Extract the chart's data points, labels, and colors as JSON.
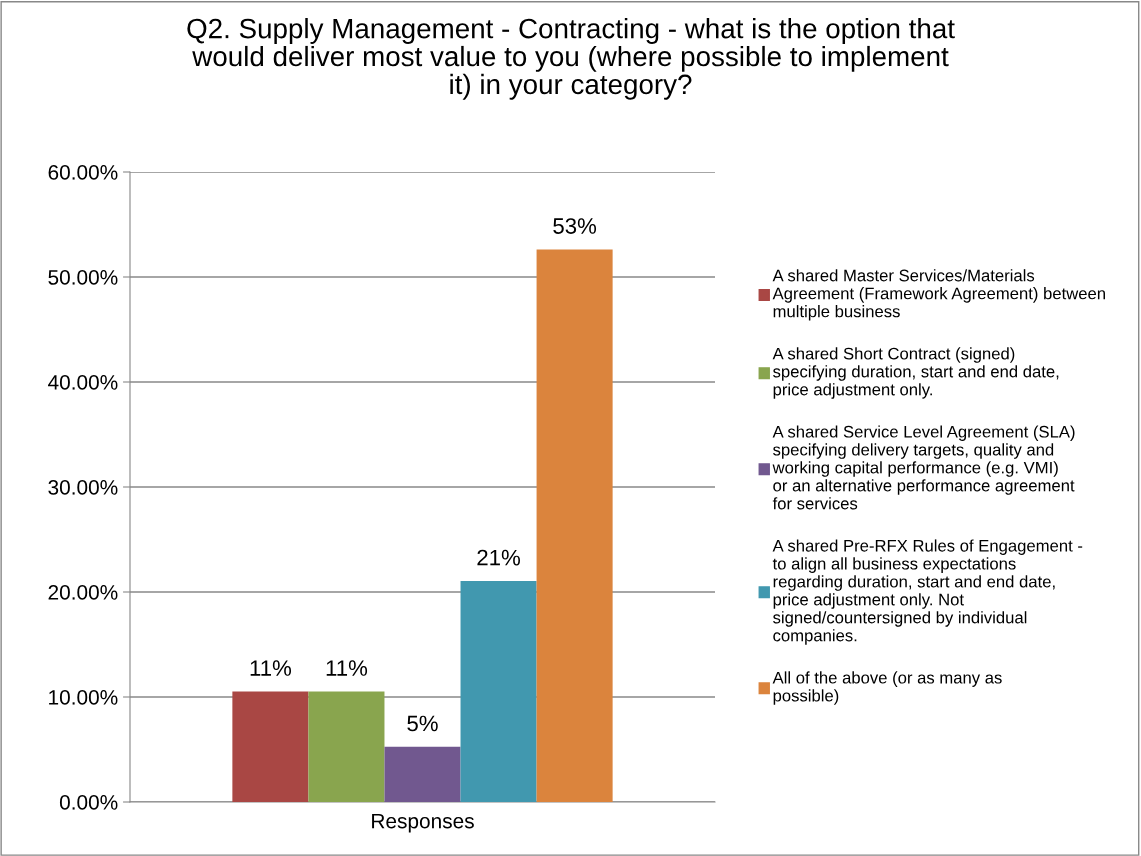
{
  "chart_data": {
    "type": "bar",
    "title": "Q2. Supply Management - Contracting - what is the option that would deliver most value to you (where possible to implement it) in your category?",
    "categories": [
      "Responses"
    ],
    "series": [
      {
        "name": "A shared Master Services/Materials Agreement (Framework Agreement) between multiple business",
        "color": "#a94744",
        "values": [
          10.53
        ],
        "value_labels": [
          "11%"
        ]
      },
      {
        "name": "A shared Short Contract (signed) specifying duration, start and end date, price adjustment only.",
        "color": "#89a54e",
        "values": [
          10.53
        ],
        "value_labels": [
          "11%"
        ]
      },
      {
        "name": "A shared Service Level Agreement (SLA) specifying delivery targets, quality and working capital performance (e.g. VMI) or an alternative performance agreement for services",
        "color": "#71588f",
        "values": [
          5.26
        ],
        "value_labels": [
          "5%"
        ]
      },
      {
        "name": "A shared Pre-RFX Rules of Engagement - to align all business expectations regarding duration, start and end date, price adjustment only. Not signed/countersigned by individual companies.",
        "color": "#4198af",
        "values": [
          21.05
        ],
        "value_labels": [
          "21%"
        ]
      },
      {
        "name": "All of the above (or as many as possible)",
        "color": "#db843d",
        "values": [
          52.63
        ],
        "value_labels": [
          "53%"
        ]
      }
    ],
    "ylim": [
      0,
      60
    ],
    "yticks": [
      {
        "value": 0,
        "label": "0.00%"
      },
      {
        "value": 10,
        "label": "10.00%"
      },
      {
        "value": 20,
        "label": "20.00%"
      },
      {
        "value": 30,
        "label": "30.00%"
      },
      {
        "value": 40,
        "label": "40.00%"
      },
      {
        "value": 50,
        "label": "50.00%"
      },
      {
        "value": 60,
        "label": "60.00%"
      }
    ],
    "grid": "y",
    "legend": "right"
  }
}
